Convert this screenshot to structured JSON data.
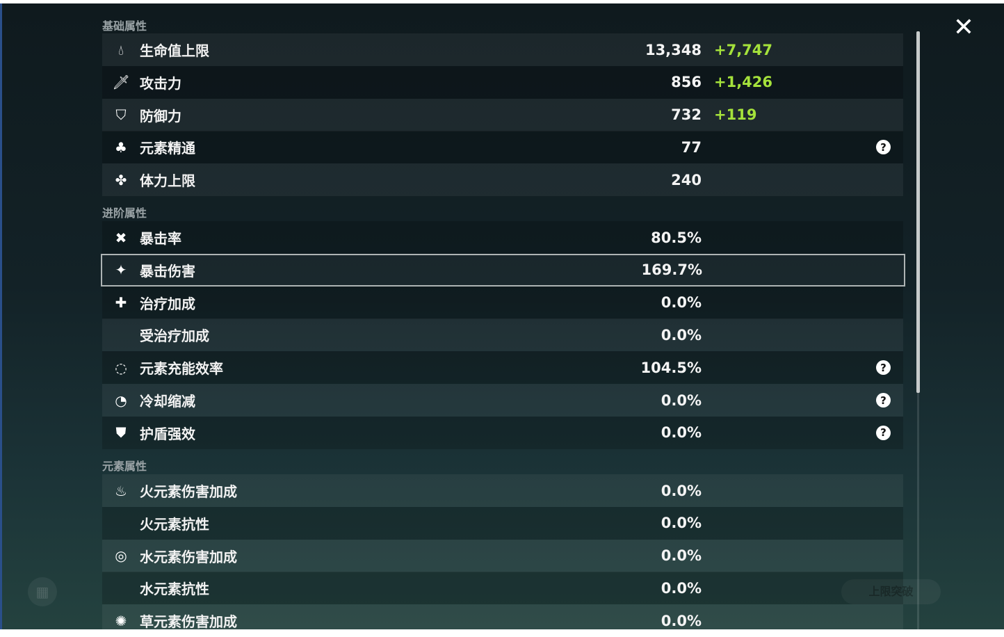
{
  "close_icon": "close-icon",
  "background": {
    "upgrade_button": "上限突破"
  },
  "sections": [
    {
      "title": "基础属性",
      "rows": [
        {
          "icon": "hp-drop-icon",
          "label": "生命值上限",
          "value": "13,348",
          "bonus": "+7,747"
        },
        {
          "icon": "sword-icon",
          "label": "攻击力",
          "value": "856",
          "bonus": "+1,426"
        },
        {
          "icon": "shield-icon",
          "label": "防御力",
          "value": "732",
          "bonus": "+119"
        },
        {
          "icon": "elemental-mastery-icon",
          "label": "元素精通",
          "value": "77",
          "help": "?"
        },
        {
          "icon": "stamina-icon",
          "label": "体力上限",
          "value": "240"
        }
      ]
    },
    {
      "title": "进阶属性",
      "rows": [
        {
          "icon": "crit-rate-icon",
          "label": "暴击率",
          "value": "80.5%"
        },
        {
          "icon": "crit-dmg-icon",
          "label": "暴击伤害",
          "value": "169.7%",
          "selected": true
        },
        {
          "icon": "healing-cross-icon",
          "label": "治疗加成",
          "value": "0.0%"
        },
        {
          "icon": "",
          "label": "受治疗加成",
          "value": "0.0%"
        },
        {
          "icon": "energy-recharge-icon",
          "label": "元素充能效率",
          "value": "104.5%",
          "help": "?"
        },
        {
          "icon": "cooldown-icon",
          "label": "冷却缩减",
          "value": "0.0%",
          "help": "?"
        },
        {
          "icon": "shield-strength-icon",
          "label": "护盾强效",
          "value": "0.0%",
          "help": "?"
        }
      ]
    },
    {
      "title": "元素属性",
      "rows": [
        {
          "icon": "pyro-icon",
          "label": "火元素伤害加成",
          "value": "0.0%"
        },
        {
          "icon": "",
          "label": "火元素抗性",
          "value": "0.0%"
        },
        {
          "icon": "hydro-icon",
          "label": "水元素伤害加成",
          "value": "0.0%"
        },
        {
          "icon": "",
          "label": "水元素抗性",
          "value": "0.0%"
        },
        {
          "icon": "dendro-icon",
          "label": "草元素伤害加成",
          "value": "0.0%"
        }
      ]
    }
  ],
  "colors": {
    "bonus": "#a5e23b",
    "selected_border": "#aeb4b4"
  }
}
